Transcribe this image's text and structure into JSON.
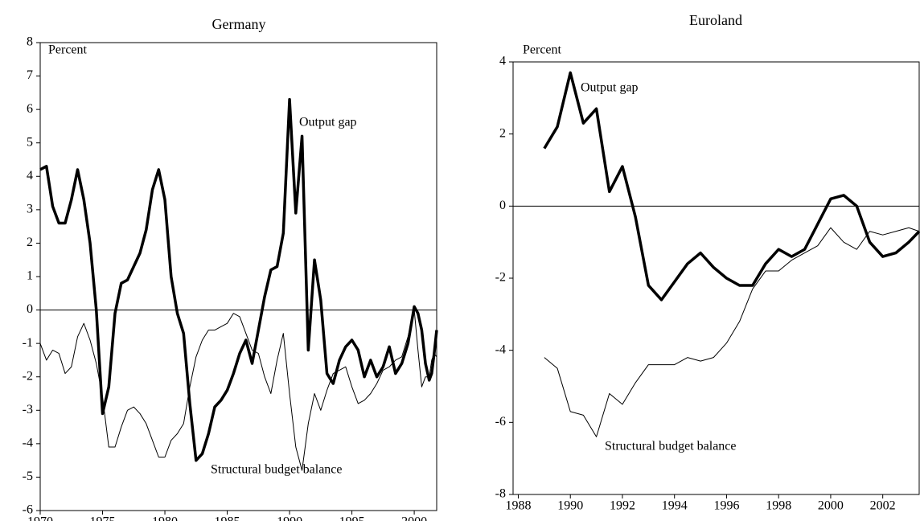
{
  "chart_data": [
    {
      "type": "line",
      "title": "Germany",
      "y_label": "Percent",
      "x": [
        1970,
        1970.5,
        1971,
        1971.5,
        1972,
        1972.5,
        1973,
        1973.5,
        1974,
        1974.5,
        1975,
        1975.5,
        1976,
        1976.5,
        1977,
        1977.5,
        1978,
        1978.5,
        1979,
        1979.5,
        1980,
        1980.5,
        1981,
        1981.5,
        1982,
        1982.5,
        1983,
        1983.5,
        1984,
        1984.5,
        1985,
        1985.5,
        1986,
        1986.5,
        1987,
        1987.5,
        1988,
        1988.5,
        1989,
        1989.5,
        1990,
        1990.5,
        1991,
        1991.5,
        1992,
        1992.5,
        1993,
        1993.5,
        1994,
        1994.5,
        1995,
        1995.5,
        1996,
        1996.5,
        1997,
        1997.5,
        1998,
        1998.5,
        1999,
        1999.5,
        2000,
        2000.3,
        2000.6,
        2000.9,
        2001.2,
        2001.4,
        2001.6,
        2001.8
      ],
      "series": [
        {
          "name": "Output gap",
          "color": "#000000",
          "width": 3.5,
          "values": [
            4.2,
            4.3,
            3.1,
            2.6,
            2.6,
            3.3,
            4.2,
            3.3,
            2.0,
            0.0,
            -3.1,
            -2.3,
            -0.1,
            0.8,
            0.9,
            1.3,
            1.7,
            2.4,
            3.6,
            4.2,
            3.3,
            1.0,
            -0.1,
            -0.7,
            -2.8,
            -4.5,
            -4.3,
            -3.7,
            -2.9,
            -2.7,
            -2.4,
            -1.9,
            -1.3,
            -0.9,
            -1.6,
            -0.6,
            0.4,
            1.2,
            1.3,
            2.3,
            6.3,
            2.9,
            5.2,
            -1.2,
            1.5,
            0.3,
            -1.9,
            -2.2,
            -1.5,
            -1.1,
            -0.9,
            -1.2,
            -2.0,
            -1.5,
            -2.0,
            -1.7,
            -1.1,
            -1.9,
            -1.6,
            -1.0,
            0.1,
            -0.1,
            -0.6,
            -1.6,
            -2.1,
            -1.9,
            -1.3,
            -0.6
          ]
        },
        {
          "name": "Structural budget balance",
          "color": "#000000",
          "width": 1,
          "values": [
            -1.0,
            -1.5,
            -1.2,
            -1.3,
            -1.9,
            -1.7,
            -0.8,
            -0.4,
            -0.9,
            -1.6,
            -2.6,
            -4.1,
            -4.1,
            -3.5,
            -3.0,
            -2.9,
            -3.1,
            -3.4,
            -3.9,
            -4.4,
            -4.4,
            -3.9,
            -3.7,
            -3.4,
            -2.3,
            -1.4,
            -0.9,
            -0.6,
            -0.6,
            -0.5,
            -0.4,
            -0.1,
            -0.2,
            -0.7,
            -1.2,
            -1.3,
            -2.0,
            -2.5,
            -1.5,
            -0.7,
            -2.5,
            -4.1,
            -4.8,
            -3.4,
            -2.5,
            -3.0,
            -2.4,
            -1.9,
            -1.8,
            -1.7,
            -2.3,
            -2.8,
            -2.7,
            -2.5,
            -2.2,
            -1.8,
            -1.7,
            -1.5,
            -1.4,
            -0.8,
            0.0,
            -1.2,
            -2.3,
            -2.0,
            -2.0,
            -1.5,
            -1.3,
            -1.4
          ]
        }
      ],
      "xlim": [
        1970,
        2001.8
      ],
      "xticks": [
        1970,
        1975,
        1980,
        1985,
        1990,
        1995,
        2000
      ],
      "ylim": [
        -6,
        8
      ],
      "yticks": [
        -6,
        -5,
        -4,
        -3,
        -2,
        -1,
        0,
        1,
        2,
        3,
        4,
        5,
        6,
        7,
        8
      ],
      "zero_line": true
    },
    {
      "type": "line",
      "title": "Euroland",
      "y_label": "Percent",
      "x": [
        1989,
        1989.5,
        1990,
        1990.5,
        1991,
        1991.5,
        1992,
        1992.5,
        1993,
        1993.5,
        1994,
        1994.5,
        1995,
        1995.5,
        1996,
        1996.5,
        1997,
        1997.5,
        1998,
        1998.5,
        1999,
        1999.5,
        2000,
        2000.5,
        2001,
        2001.5,
        2002,
        2002.5,
        2003,
        2003.4
      ],
      "series": [
        {
          "name": "Output gap",
          "color": "#000000",
          "width": 3.5,
          "values": [
            1.6,
            2.2,
            3.7,
            2.3,
            2.7,
            0.4,
            1.1,
            -0.3,
            -2.2,
            -2.6,
            -2.1,
            -1.6,
            -1.3,
            -1.7,
            -2.0,
            -2.2,
            -2.2,
            -1.6,
            -1.2,
            -1.4,
            -1.2,
            -0.5,
            0.2,
            0.3,
            0.0,
            -1.0,
            -1.4,
            -1.3,
            -1.0,
            -0.7
          ]
        },
        {
          "name": "Structural budget balance",
          "color": "#000000",
          "width": 1,
          "values": [
            -4.2,
            -4.5,
            -5.7,
            -5.8,
            -6.4,
            -5.2,
            -5.5,
            -4.9,
            -4.4,
            -4.4,
            -4.4,
            -4.2,
            -4.3,
            -4.2,
            -3.8,
            -3.2,
            -2.3,
            -1.8,
            -1.8,
            -1.5,
            -1.3,
            -1.1,
            -0.6,
            -1.0,
            -1.2,
            -0.7,
            -0.8,
            -0.7,
            -0.6,
            -0.7
          ]
        }
      ],
      "xlim": [
        1987.8,
        2003.4
      ],
      "xticks": [
        1988,
        1990,
        1992,
        1994,
        1996,
        1998,
        2000,
        2002
      ],
      "ylim": [
        -8,
        4
      ],
      "yticks": [
        -8,
        -6,
        -4,
        -2,
        0,
        2,
        4
      ],
      "zero_line": true
    }
  ]
}
